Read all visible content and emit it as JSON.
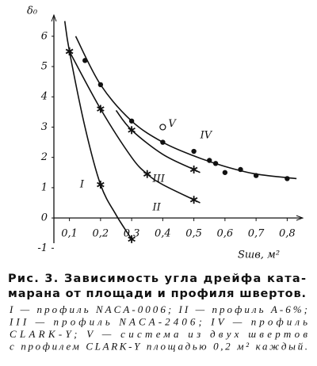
{
  "chart_data": {
    "type": "line",
    "y_label": "δ₀",
    "x_label": "Sшв, м²",
    "xlim": [
      0.05,
      0.85
    ],
    "ylim": [
      -1.2,
      6.7
    ],
    "xticks": [
      {
        "value": 0.1,
        "label": "0,1"
      },
      {
        "value": 0.2,
        "label": "0,2"
      },
      {
        "value": 0.3,
        "label": "0,3"
      },
      {
        "value": 0.4,
        "label": "0,4"
      },
      {
        "value": 0.5,
        "label": "0,5"
      },
      {
        "value": 0.6,
        "label": "0,6"
      },
      {
        "value": 0.7,
        "label": "0,7"
      },
      {
        "value": 0.8,
        "label": "0,8"
      }
    ],
    "yticks": [
      -1,
      0,
      1,
      2,
      3,
      4,
      5,
      6
    ],
    "series": [
      {
        "name": "I",
        "marker": "star",
        "x": [
          0.085,
          0.1,
          0.15,
          0.2,
          0.25,
          0.3
        ],
        "values": [
          6.5,
          5.5,
          3.0,
          1.1,
          0.1,
          -0.7
        ],
        "marker_x": [
          0.1,
          0.2,
          0.3
        ],
        "marker_values": [
          5.5,
          1.1,
          -0.7
        ]
      },
      {
        "name": "II",
        "marker": "star",
        "x": [
          0.1,
          0.2,
          0.3,
          0.35,
          0.4,
          0.5,
          0.52
        ],
        "values": [
          5.5,
          3.6,
          2.0,
          1.45,
          1.1,
          0.6,
          0.5
        ],
        "marker_x": [
          0.1,
          0.2,
          0.35,
          0.5
        ],
        "marker_values": [
          5.5,
          3.6,
          1.45,
          0.6
        ]
      },
      {
        "name": "III",
        "marker": "star",
        "x": [
          0.25,
          0.3,
          0.4,
          0.5,
          0.52
        ],
        "values": [
          3.55,
          2.9,
          2.1,
          1.6,
          1.5
        ],
        "marker_x": [
          0.3,
          0.5
        ],
        "marker_values": [
          2.9,
          1.6
        ]
      },
      {
        "name": "IV",
        "marker": "dot",
        "x": [
          0.12,
          0.2,
          0.3,
          0.4,
          0.5,
          0.6,
          0.7,
          0.83
        ],
        "values": [
          6.0,
          4.4,
          3.2,
          2.5,
          2.05,
          1.7,
          1.45,
          1.3
        ],
        "marker_x": [
          0.15,
          0.2,
          0.3,
          0.4,
          0.5,
          0.55,
          0.57,
          0.6,
          0.65,
          0.7,
          0.8
        ],
        "marker_values": [
          5.2,
          4.4,
          3.2,
          2.5,
          2.2,
          1.9,
          1.8,
          1.5,
          1.6,
          1.4,
          1.3
        ]
      }
    ],
    "point": {
      "name": "V",
      "x": 0.4,
      "value": 3.0
    },
    "caption": [
      "Рис. 3. Зависимость угла дрейфа ката-",
      "марана от площади и профиля швертов.",
      "I — профиль NACA-0006; II — профиль А-6%;",
      "III — профиль NACA-2406; IV — профиль",
      "CLARK-Y; V — система из двух швертов",
      "с профилем CLARK-Y площадью 0,2 м² каждый."
    ]
  }
}
